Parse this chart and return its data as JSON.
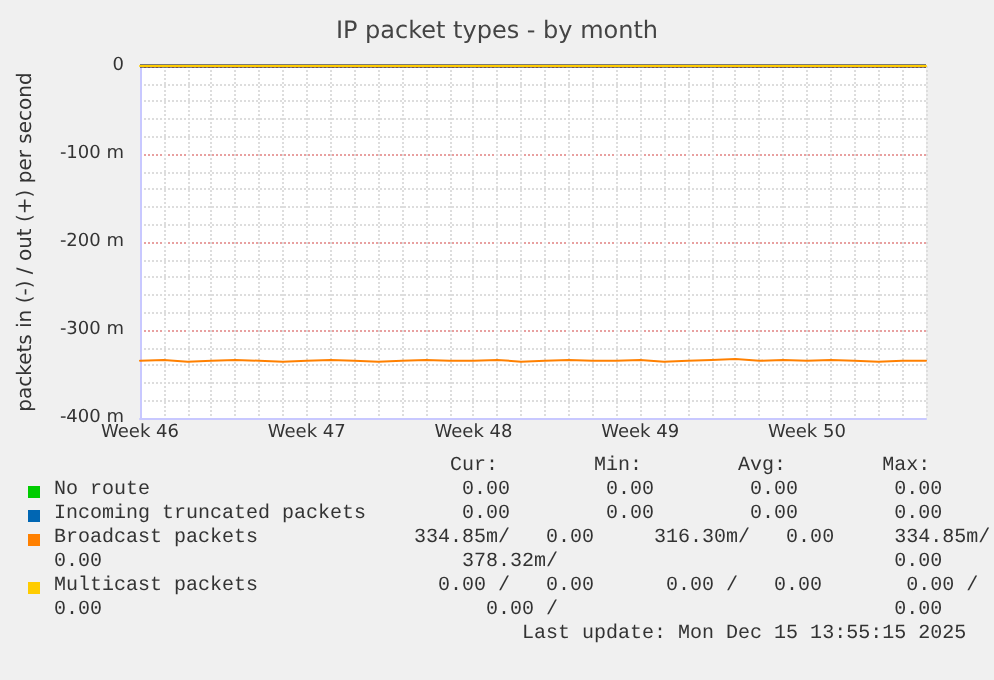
{
  "chart_data": {
    "type": "line",
    "title": "IP packet types - by month",
    "ylabel": "packets in (-) / out (+) per second",
    "categories": [
      "Week 46",
      null,
      null,
      null,
      null,
      null,
      null,
      "Week 47",
      null,
      null,
      null,
      null,
      null,
      null,
      "Week 48",
      null,
      null,
      null,
      null,
      null,
      null,
      "Week 49",
      null,
      null,
      null,
      null,
      null,
      null,
      "Week 50",
      null,
      null,
      null,
      null,
      null
    ],
    "ylim": [
      -400,
      0
    ],
    "yticks": [
      {
        "value": -400,
        "label": "-400 m"
      },
      {
        "value": -300,
        "label": "-300 m"
      },
      {
        "value": -200,
        "label": "-200 m"
      },
      {
        "value": -100,
        "label": "-100 m"
      },
      0
    ],
    "series": [
      {
        "name": "No route",
        "color": "#00cc00",
        "values": [
          null,
          null,
          null,
          null,
          null,
          null,
          null,
          null,
          null,
          null,
          null,
          null,
          null,
          null,
          null,
          null,
          null,
          null,
          null,
          null,
          null,
          null,
          null,
          null,
          null,
          null,
          null,
          null,
          null,
          null,
          null,
          null,
          null,
          null
        ]
      },
      {
        "name": "Incoming truncated packets",
        "color": "#0066b3",
        "values": [
          null,
          null,
          null,
          null,
          null,
          null,
          null,
          null,
          null,
          null,
          null,
          null,
          null,
          null,
          null,
          null,
          null,
          null,
          null,
          null,
          null,
          null,
          null,
          null,
          null,
          null,
          null,
          null,
          null,
          null,
          null,
          null,
          null,
          null
        ]
      },
      {
        "name": "Broadcast packets",
        "color": "#ff8000",
        "values": [
          -335,
          -334,
          -336,
          -335,
          -334,
          -335,
          -336,
          -335,
          -334,
          -335,
          -336,
          -335,
          -334,
          -335,
          -335,
          -334,
          -336,
          -335,
          -334,
          -335,
          -335,
          -334,
          -336,
          -335,
          -334,
          -333,
          -335,
          -334,
          -335,
          -334,
          -335,
          -336,
          -335,
          -335
        ]
      },
      {
        "name": "Multicast packets",
        "color": "#ffcc00",
        "values": [
          0,
          0,
          0,
          0,
          0,
          0,
          0,
          0,
          0,
          0,
          0,
          0,
          0,
          0,
          0,
          0,
          0,
          0,
          0,
          0,
          0,
          0,
          0,
          0,
          0,
          0,
          0,
          0,
          0,
          0,
          0,
          0,
          0,
          0
        ]
      }
    ],
    "ref_lines": [
      {
        "axis": "y",
        "value": 0,
        "color": "#000000"
      }
    ],
    "grid": true,
    "legend": "bottom",
    "marker": "none",
    "line_style": "solid",
    "annotations": [
      "                                 Cur:        Min:        Avg:        Max:",
      "                                  0.00        0.00        0.00        0.00",
      "                                  0.00        0.00        0.00        0.00",
      "                              334.85m/   0.00     316.30m/   0.00     334.85m/",
      "0.00                              378.32m/                            0.00",
      "                                0.00 /   0.00      0.00 /   0.00       0.00 /",
      "0.00                                0.00 /                            0.00",
      "                                       Last update: Mon Dec 15 13:55:15 2025"
    ]
  }
}
